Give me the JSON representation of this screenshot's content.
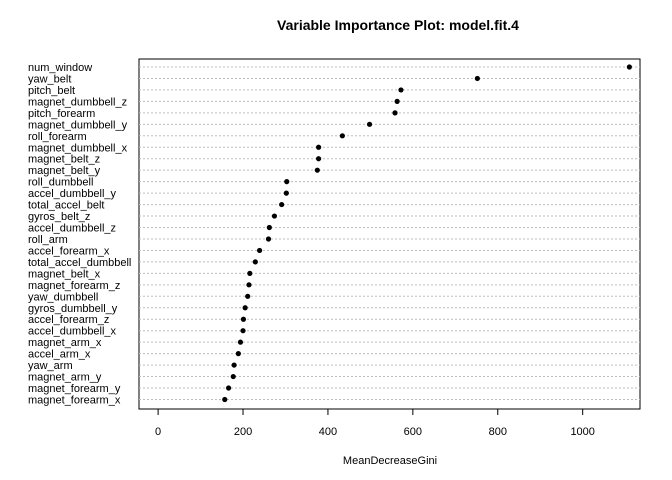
{
  "chart_data": {
    "type": "scatter",
    "title": "Variable Importance Plot: model.fit.4",
    "xlabel": "MeanDecreaseGini",
    "ylabel": "",
    "xlim": [
      -45,
      1135
    ],
    "xticks": [
      0,
      200,
      400,
      600,
      800,
      1000
    ],
    "grid": "dotted horizontal guides",
    "categories": [
      "num_window",
      "yaw_belt",
      "pitch_belt",
      "magnet_dumbbell_z",
      "pitch_forearm",
      "magnet_dumbbell_y",
      "roll_forearm",
      "magnet_dumbbell_x",
      "magnet_belt_z",
      "magnet_belt_y",
      "roll_dumbbell",
      "accel_dumbbell_y",
      "total_accel_belt",
      "gyros_belt_z",
      "accel_dumbbell_z",
      "roll_arm",
      "accel_forearm_x",
      "total_accel_dumbbell",
      "magnet_belt_x",
      "magnet_forearm_z",
      "yaw_dumbbell",
      "gyros_dumbbell_y",
      "accel_forearm_z",
      "accel_dumbbell_x",
      "magnet_arm_x",
      "accel_arm_x",
      "yaw_arm",
      "magnet_arm_y",
      "magnet_forearm_y",
      "magnet_forearm_x"
    ],
    "values": [
      1110,
      752,
      572,
      563,
      558,
      498,
      434,
      378,
      378,
      375,
      303,
      302,
      291,
      274,
      262,
      260,
      239,
      229,
      216,
      214,
      211,
      205,
      201,
      200,
      194,
      189,
      179,
      177,
      166,
      157
    ]
  }
}
